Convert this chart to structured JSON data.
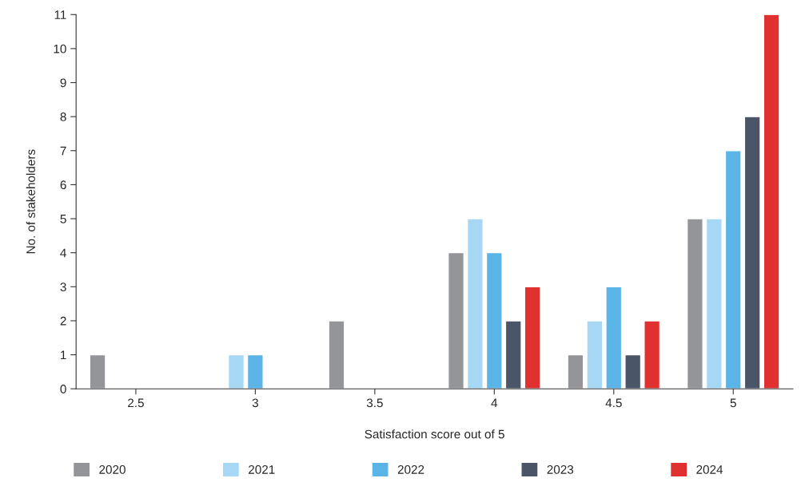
{
  "chart_data": {
    "type": "bar",
    "xlabel": "Satisfaction score out of 5",
    "ylabel": "No. of stakeholders",
    "categories": [
      "2.5",
      "3",
      "3.5",
      "4",
      "4.5",
      "5"
    ],
    "series": [
      {
        "name": "2020",
        "color": "#939598",
        "values": [
          1,
          null,
          2,
          4,
          1,
          5
        ]
      },
      {
        "name": "2021",
        "color": "#a6d8f5",
        "values": [
          null,
          1,
          null,
          5,
          2,
          5
        ]
      },
      {
        "name": "2022",
        "color": "#5ab4e5",
        "values": [
          null,
          1,
          null,
          4,
          3,
          7
        ]
      },
      {
        "name": "2023",
        "color": "#4a5568",
        "values": [
          null,
          null,
          null,
          2,
          1,
          8
        ]
      },
      {
        "name": "2024",
        "color": "#e03030",
        "values": [
          null,
          null,
          null,
          3,
          2,
          11
        ]
      }
    ],
    "ylim": [
      0,
      11
    ],
    "yticks": [
      0,
      1,
      2,
      3,
      4,
      5,
      6,
      7,
      8,
      9,
      10,
      11
    ],
    "grid": false,
    "legend": "bottom"
  }
}
